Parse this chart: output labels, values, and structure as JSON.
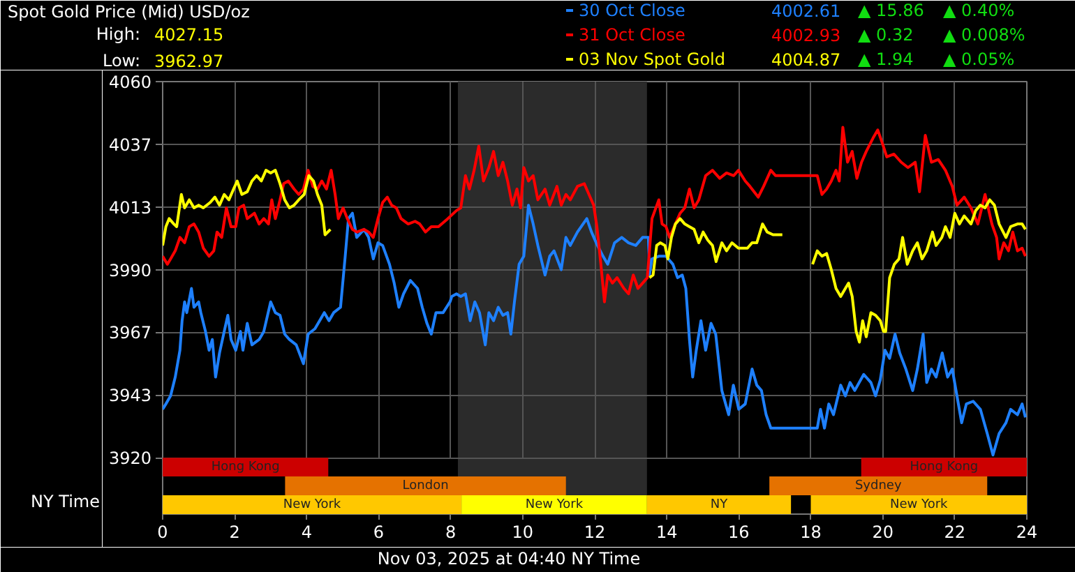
{
  "chart_data": {
    "type": "line",
    "title": "Spot Gold Price (Mid) USD/oz",
    "xlabel": "NY Time",
    "annotations": [
      "High:",
      "4027.15",
      "Low:",
      "3962.97",
      "4002.61",
      "▲ 15.86",
      "▲ 0.40%",
      "4002.93",
      "▲ 0.32",
      "▲ 0.008%",
      "4004.87",
      "▲ 1.94",
      "▲ 0.05%",
      "Nov 03, 2025 at 04:40 NY Time"
    ],
    "legend": "top right",
    "grid": true,
    "xlim": [
      0,
      24
    ],
    "xticks": [
      0,
      2,
      4,
      6,
      8,
      10,
      12,
      14,
      16,
      18,
      20,
      22,
      24
    ],
    "ylim": [
      3899,
      4060
    ],
    "yticks": [
      3920,
      {
        "value": 3943.33,
        "label": "3943"
      },
      {
        "value": 3966.67,
        "label": "3967"
      },
      3990,
      {
        "value": 4013.33,
        "label": "4013"
      },
      {
        "value": 4036.67,
        "label": "4037"
      },
      4060
    ],
    "bands": [
      {
        "axis": "x",
        "from": 8.2,
        "to": 13.45,
        "color": "#2b2b2b"
      },
      {
        "axis": "x",
        "from": 0,
        "to": 4.6,
        "label": "Hong Kong",
        "color": "#cc0000"
      },
      {
        "axis": "x",
        "from": 19.4,
        "to": 24,
        "label": "Hong Kong",
        "color": "#cc0000"
      },
      {
        "axis": "x",
        "from": 3.4,
        "to": 11.2,
        "label": "London",
        "color": "#e57200"
      },
      {
        "axis": "x",
        "from": 16.85,
        "to": 22.9,
        "label": "Sydney",
        "color": "#e57200"
      },
      {
        "axis": "x",
        "from": 0,
        "to": 8.3,
        "label": "New York",
        "color": "#ffc800"
      },
      {
        "axis": "x",
        "from": 8.3,
        "to": 13.45,
        "label": "New York",
        "color": "#ffff00"
      },
      {
        "axis": "x",
        "from": 13.45,
        "to": 17.45,
        "label": "NY",
        "color": "#ffc800"
      },
      {
        "axis": "x",
        "from": 18,
        "to": 24,
        "label": "New York",
        "color": "#ffc800"
      }
    ],
    "series": [
      {
        "name": "30 Oct Close",
        "color": "#1e80ff",
        "x": [
          0,
          0.09,
          0.22,
          0.35,
          0.48,
          0.54,
          0.61,
          0.67,
          0.8,
          0.87,
          1.0,
          1.06,
          1.19,
          1.29,
          1.38,
          1.47,
          1.58,
          1.71,
          1.81,
          1.9,
          2.03,
          2.16,
          2.23,
          2.35,
          2.48,
          2.68,
          2.81,
          3.0,
          3.13,
          3.26,
          3.39,
          3.52,
          3.71,
          3.91,
          4.04,
          4.23,
          4.36,
          4.49,
          4.62,
          4.75,
          4.94,
          5.07,
          5.16,
          5.27,
          5.39,
          5.59,
          5.72,
          5.85,
          5.98,
          6.11,
          6.3,
          6.43,
          6.56,
          6.69,
          6.88,
          7.08,
          7.21,
          7.34,
          7.46,
          7.59,
          7.79,
          7.98,
          8.03,
          8.16,
          8.28,
          8.41,
          8.54,
          8.67,
          8.8,
          8.96,
          9.06,
          9.19,
          9.32,
          9.45,
          9.58,
          9.67,
          9.77,
          9.9,
          10.03,
          10.16,
          10.29,
          10.42,
          10.62,
          10.75,
          10.87,
          11.07,
          11.2,
          11.32,
          11.52,
          11.78,
          11.91,
          12.04,
          12.23,
          12.36,
          12.55,
          12.75,
          12.94,
          13.14,
          13.33,
          13.49,
          13.52,
          13.59,
          13.78,
          13.98,
          14.17,
          14.3,
          14.43,
          14.53,
          14.63,
          14.72,
          14.82,
          14.95,
          15.08,
          15.23,
          15.36,
          15.53,
          15.72,
          15.85,
          16.0,
          16.18,
          16.37,
          16.5,
          16.63,
          16.76,
          16.89,
          18.18,
          18.27,
          18.38,
          18.5,
          18.63,
          18.83,
          18.96,
          19.09,
          19.22,
          19.47,
          19.67,
          19.8,
          19.93,
          20.06,
          20.19,
          20.34,
          20.47,
          20.64,
          20.83,
          20.96,
          21.12,
          21.22,
          21.35,
          21.48,
          21.65,
          21.8,
          21.93,
          22.06,
          22.19,
          22.32,
          22.51,
          22.71,
          22.9,
          23.06,
          23.23,
          23.42,
          23.55,
          23.74,
          23.87,
          23.96
        ],
        "values": [
          3938,
          3940,
          3943,
          3950,
          3960,
          3971,
          3978,
          3974,
          3983,
          3976,
          3978,
          3974,
          3967,
          3960,
          3964,
          3950,
          3959,
          3967,
          3973,
          3964,
          3960,
          3967,
          3960,
          3970,
          3962,
          3964,
          3967,
          3978,
          3974,
          3973,
          3966,
          3964,
          3962,
          3955,
          3966,
          3968,
          3971,
          3974,
          3971,
          3974,
          3976,
          3995,
          4009,
          4011,
          4002,
          4005,
          4002,
          3994,
          4000,
          3999,
          3992,
          3985,
          3976,
          3981,
          3986,
          3983,
          3976,
          3970,
          3966,
          3974,
          3974,
          3978,
          3980,
          3981,
          3980,
          3981,
          3971,
          3978,
          3974,
          3962,
          3974,
          3971,
          3976,
          3973,
          3974,
          3966,
          3978,
          3992,
          3995,
          4014,
          4007,
          3999,
          3988,
          3995,
          3997,
          3990,
          4002,
          3999,
          4004,
          4009,
          4004,
          4000,
          3995,
          3992,
          4000,
          4002,
          4000,
          3999,
          4002,
          4002,
          3988,
          3994,
          3995,
          3995,
          3992,
          3987,
          3988,
          3983,
          3964,
          3950,
          3960,
          3971,
          3960,
          3970,
          3966,
          3945,
          3936,
          3947,
          3938,
          3940,
          3953,
          3947,
          3945,
          3936,
          3931,
          3931,
          3938,
          3931,
          3940,
          3936,
          3947,
          3943,
          3948,
          3945,
          3951,
          3948,
          3943,
          3949,
          3960,
          3957,
          3966,
          3959,
          3953,
          3945,
          3953,
          3966,
          3948,
          3953,
          3950,
          3959,
          3950,
          3953,
          3943,
          3933,
          3940,
          3941,
          3938,
          3929,
          3921,
          3929,
          3933,
          3938,
          3936,
          3940,
          3935
        ]
      },
      {
        "name": "31 Oct Close",
        "color": "#ff0000",
        "x": [
          0,
          0.13,
          0.22,
          0.35,
          0.48,
          0.61,
          0.74,
          0.87,
          1.0,
          1.13,
          1.29,
          1.42,
          1.51,
          1.64,
          1.77,
          1.9,
          2.03,
          2.12,
          2.25,
          2.35,
          2.55,
          2.68,
          2.81,
          2.94,
          3.03,
          3.13,
          3.26,
          3.36,
          3.49,
          3.65,
          3.78,
          3.91,
          4.04,
          4.17,
          4.3,
          4.42,
          4.55,
          4.68,
          4.79,
          4.88,
          5.01,
          5.13,
          5.27,
          5.39,
          5.59,
          5.72,
          5.85,
          5.98,
          6.11,
          6.24,
          6.36,
          6.49,
          6.62,
          6.82,
          7.01,
          7.14,
          7.3,
          7.46,
          7.66,
          7.92,
          8.16,
          8.28,
          8.41,
          8.52,
          8.65,
          8.78,
          8.91,
          9.06,
          9.19,
          9.32,
          9.45,
          9.58,
          9.71,
          9.84,
          9.94,
          10.03,
          10.16,
          10.29,
          10.42,
          10.62,
          10.75,
          10.95,
          11.07,
          11.2,
          11.32,
          11.52,
          11.71,
          11.84,
          11.97,
          12.06,
          12.17,
          12.27,
          12.36,
          12.49,
          12.62,
          12.81,
          12.94,
          13.07,
          13.2,
          13.33,
          13.46,
          13.59,
          13.78,
          13.87,
          13.98,
          14.08,
          14.24,
          14.37,
          14.5,
          14.63,
          14.76,
          14.89,
          15.08,
          15.27,
          15.47,
          15.66,
          15.86,
          15.99,
          16.18,
          16.31,
          16.54,
          16.69,
          16.89,
          17.02,
          18.18,
          18.31,
          18.44,
          18.57,
          18.7,
          18.79,
          18.89,
          19.02,
          19.15,
          19.28,
          19.41,
          19.54,
          19.73,
          19.86,
          19.99,
          20.11,
          20.31,
          20.51,
          20.7,
          20.9,
          21.02,
          21.18,
          21.35,
          21.54,
          21.74,
          21.93,
          22.06,
          22.26,
          22.45,
          22.64,
          22.84,
          23.03,
          23.16,
          23.23,
          23.36,
          23.49,
          23.61,
          23.74,
          23.87,
          23.96
        ],
        "values": [
          3995,
          3992,
          3994,
          3997,
          4002,
          4000,
          4006,
          4007,
          4004,
          3998,
          3995,
          3997,
          4004,
          4002,
          4013,
          4006,
          4006,
          4013,
          4014,
          4009,
          4011,
          4007,
          4009,
          4007,
          4016,
          4009,
          4016,
          4022,
          4023,
          4020,
          4018,
          4020,
          4027,
          4021,
          4020,
          4023,
          4020,
          4027,
          4018,
          4009,
          4013,
          4009,
          4005,
          4004,
          4005,
          4004,
          4002,
          4009,
          4015,
          4017,
          4014,
          4013,
          4009,
          4007,
          4008,
          4007,
          4004,
          4006,
          4006,
          4009,
          4012,
          4013,
          4025,
          4020,
          4027,
          4036,
          4023,
          4028,
          4034,
          4025,
          4030,
          4023,
          4014,
          4020,
          4013,
          4028,
          4023,
          4025,
          4016,
          4020,
          4014,
          4021,
          4014,
          4018,
          4016,
          4021,
          4022,
          4018,
          4014,
          4006,
          3992,
          3978,
          3988,
          3985,
          3987,
          3983,
          3981,
          3988,
          3983,
          3985,
          3987,
          4009,
          4016,
          4007,
          4006,
          4002,
          4007,
          4011,
          4013,
          4020,
          4013,
          4016,
          4025,
          4027,
          4024,
          4026,
          4025,
          4027,
          4023,
          4021,
          4017,
          4021,
          4027,
          4025,
          4025,
          4018,
          4020,
          4023,
          4027,
          4023,
          4043,
          4030,
          4034,
          4024,
          4030,
          4034,
          4039,
          4042,
          4037,
          4032,
          4033,
          4030,
          4028,
          4030,
          4019,
          4040,
          4030,
          4031,
          4027,
          4021,
          4014,
          4017,
          4013,
          4007,
          4018,
          4007,
          4002,
          3994,
          4000,
          3997,
          4004,
          3997,
          3998,
          3995
        ]
      },
      {
        "name": "03 Nov Spot Gold",
        "color": "#ffff00",
        "x": [
          0,
          0.09,
          0.18,
          0.31,
          0.39,
          0.52,
          0.61,
          0.74,
          0.87,
          1.0,
          1.13,
          1.32,
          1.45,
          1.58,
          1.71,
          1.84,
          1.97,
          2.07,
          2.2,
          2.35,
          2.48,
          2.61,
          2.74,
          2.87,
          3.0,
          3.13,
          3.26,
          3.39,
          3.52,
          3.65,
          3.78,
          3.93,
          4.06,
          4.19,
          4.3,
          4.42,
          4.51,
          4.66,
          9.0,
          13.52,
          13.62,
          13.72,
          13.82,
          13.95,
          14.03,
          14.13,
          14.24,
          14.37,
          14.5,
          14.63,
          14.76,
          14.89,
          15.01,
          15.14,
          15.27,
          15.37,
          15.53,
          15.66,
          15.81,
          15.99,
          16.24,
          16.37,
          16.5,
          16.66,
          16.79,
          16.95,
          17.21,
          17.6,
          18.05,
          18.18,
          18.31,
          18.44,
          18.57,
          18.7,
          18.83,
          18.96,
          19.05,
          19.15,
          19.26,
          19.35,
          19.44,
          19.54,
          19.67,
          19.8,
          19.93,
          20.02,
          20.08,
          20.19,
          20.32,
          20.45,
          20.55,
          20.68,
          20.83,
          20.96,
          21.09,
          21.22,
          21.38,
          21.48,
          21.64,
          21.74,
          21.87,
          22.0,
          22.13,
          22.26,
          22.45,
          22.58,
          22.71,
          22.84,
          22.97,
          23.1,
          23.23,
          23.42,
          23.55,
          23.74,
          23.87,
          23.96
        ],
        "values": [
          3999,
          4006,
          4009,
          4007,
          4006,
          4018,
          4013,
          4016,
          4013,
          4014,
          4013,
          4015,
          4017,
          4014,
          4018,
          4016,
          4020,
          4023,
          4018,
          4019,
          4023,
          4025,
          4023,
          4027,
          4026,
          4027,
          4022,
          4016,
          4013,
          4014,
          4016,
          4018,
          4025,
          4023,
          4018,
          4014,
          4003,
          4005,
          null,
          3987,
          3988,
          3999,
          4000,
          3999,
          3994,
          4002,
          4007,
          4009,
          4007,
          4006,
          4005,
          4000,
          4004,
          4001,
          3999,
          3993,
          4000,
          3997,
          4000,
          3998,
          3998,
          4000,
          4000,
          4007,
          4004,
          4003,
          4003,
          null,
          3992,
          3997,
          3995,
          3996,
          3990,
          3983,
          3980,
          3983,
          3985,
          3980,
          3967,
          3963,
          3971,
          3965,
          3974,
          3973,
          3971,
          3967,
          3967,
          3987,
          3992,
          3994,
          4002,
          3992,
          3997,
          4000,
          3994,
          3997,
          4004,
          3999,
          4002,
          4006,
          4002,
          4011,
          4007,
          4010,
          4007,
          4012,
          4014,
          4013,
          4016,
          4014,
          4007,
          4002,
          4006,
          4007,
          4007,
          4005
        ]
      }
    ]
  }
}
